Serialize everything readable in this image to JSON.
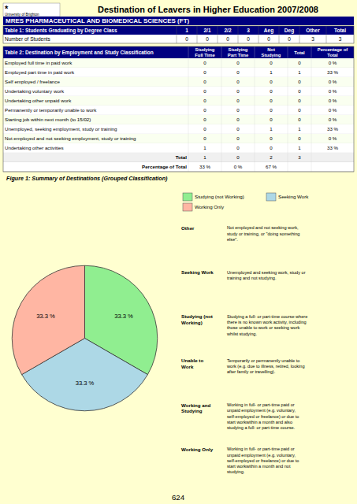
{
  "chart_data": {
    "type": "pie",
    "title": "Figure 1: Summary of Destinations (Grouped Classification)",
    "categories": [
      "Studying (not Working)",
      "Seeking Work",
      "Working Only"
    ],
    "values": [
      33.3,
      33.3,
      33.3
    ],
    "value_labels": [
      "33.3 %",
      "33.3 %",
      "33.3 %"
    ],
    "colors": [
      "#90EE90",
      "#ADD8E6",
      "#FFB6A3"
    ],
    "data_labels": true,
    "legend": "upper right"
  },
  "page": {
    "title": "Destination of Leavers in Higher Education 2007/2008",
    "subtitle": "MRES PHARMACEUTICAL AND BIOMEDICAL SCIENCES (FT)",
    "logo_mark": "*",
    "logo_text": "University of Brighton",
    "bg_color": "#FFFFD0",
    "header_bg": "#000080",
    "header_fg": "#FFFFFF",
    "table1": {
      "headers": [
        "Table 1: Students Graduating by Degree Class",
        "1",
        "2/1",
        "2/2",
        "3",
        "Aeg",
        "Deg",
        "Other",
        "Total"
      ],
      "rows": [
        [
          "Number of Students",
          "0",
          "0",
          "0",
          "0",
          "0",
          "0",
          "3",
          "3"
        ]
      ]
    },
    "table2": {
      "headers": [
        "Table 2: Destination by Employment and Study Classification",
        "Studying\nFull Time",
        "Studying\nPart Time",
        "Not\nStudying",
        "Total",
        "Percentage of\nTotal"
      ],
      "rows": [
        [
          "Employed full time in paid work",
          "0",
          "0",
          "0",
          "0",
          "0 %"
        ],
        [
          "Employed part time in paid work",
          "0",
          "0",
          "1",
          "1",
          "33 %"
        ],
        [
          "Self employed / freelance",
          "0",
          "0",
          "0",
          "0",
          "0 %"
        ],
        [
          "Undertaking voluntary work",
          "0",
          "0",
          "0",
          "0",
          "0 %"
        ],
        [
          "Undertaking other unpaid work",
          "0",
          "0",
          "0",
          "0",
          "0 %"
        ],
        [
          "Permanently or temporarily unable to work",
          "0",
          "0",
          "0",
          "0",
          "0 %"
        ],
        [
          "Starting job within next month (to 15/02)",
          "0",
          "0",
          "0",
          "0",
          "0 %"
        ],
        [
          "Unemployed, seeking employment, study or training",
          "0",
          "0",
          "1",
          "1",
          "33 %"
        ],
        [
          "Not employed and not seeking employment, study or training",
          "0",
          "0",
          "0",
          "0",
          "0 %"
        ],
        [
          "Undertaking other activities",
          "1",
          "0",
          "0",
          "1",
          "33 %"
        ]
      ],
      "total_row": [
        "Total",
        "1",
        "0",
        "2",
        "3"
      ],
      "pct_row": [
        "Percentage of Total",
        "33 %",
        "0 %",
        "67 %"
      ]
    },
    "definitions": [
      {
        "term": "Other",
        "text": "Not employed and not seeking work,\nstudy or training, or \"doing something\nelse\"."
      },
      {
        "term": "Seeking Work",
        "text": "Unemployed and seeking work, study or\ntraining and not studying."
      },
      {
        "term": "Studying (not\nWorking)",
        "text": "Studying a full- or part-time course where\nthere is no known work activity, including\nthose unable to  work or seeking work\nwhilst studying."
      },
      {
        "term": "Unable to\nWork",
        "text": "Temporarily or permanently unable to\nwork (e.g. due to illness, retired, looking\nafter family or travelling)."
      },
      {
        "term": "Working and\nStudying",
        "text": "Working in full- or part-time paid or\nunpaid employment (e.g. voluntary,\nself-employed or freelance) or due to\nstart workwithin a month and also\nstudying a full- or part-time course."
      },
      {
        "term": "Working Only",
        "text": "Working in full- or part-time paid or\nunpaid employment (e.g. voluntary,\nself-employed or freelance) or due to\nstart workwithin a month and not\nstudying."
      }
    ],
    "page_number": "624"
  }
}
